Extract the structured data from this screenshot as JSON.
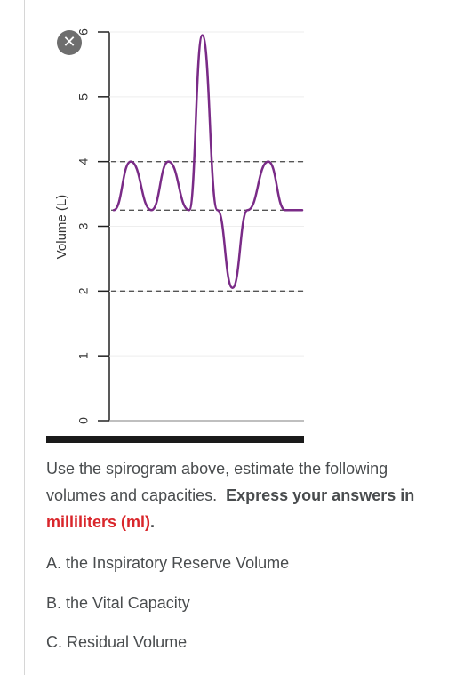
{
  "close_icon": "✕",
  "chart_data": {
    "type": "line",
    "ylabel": "Volume (L)",
    "xlabel": "",
    "ylim": [
      0,
      6
    ],
    "yticks": [
      "0",
      "1",
      "2",
      "3",
      "4",
      "5",
      "6"
    ],
    "reference_lines": [
      4.0,
      3.25,
      2.0
    ],
    "series": [
      {
        "x": [
          0,
          0.45,
          1.0,
          1.45,
          2.0,
          2.35,
          2.75,
          3.15,
          3.55,
          4.1,
          4.55,
          5.0
        ],
        "y": [
          3.25,
          4.0,
          3.25,
          4.0,
          3.25,
          5.95,
          3.25,
          2.05,
          3.25,
          4.0,
          3.25,
          3.25
        ]
      }
    ],
    "grid": true
  },
  "question": {
    "intro": "Use the spirogram above, estimate the following volumes and capacities.",
    "bold": "Express your answers in",
    "red": "milliliters (ml)",
    "period": "."
  },
  "items": [
    "A. the Inspiratory Reserve Volume",
    "B. the Vital Capacity",
    "C. Residual Volume"
  ]
}
